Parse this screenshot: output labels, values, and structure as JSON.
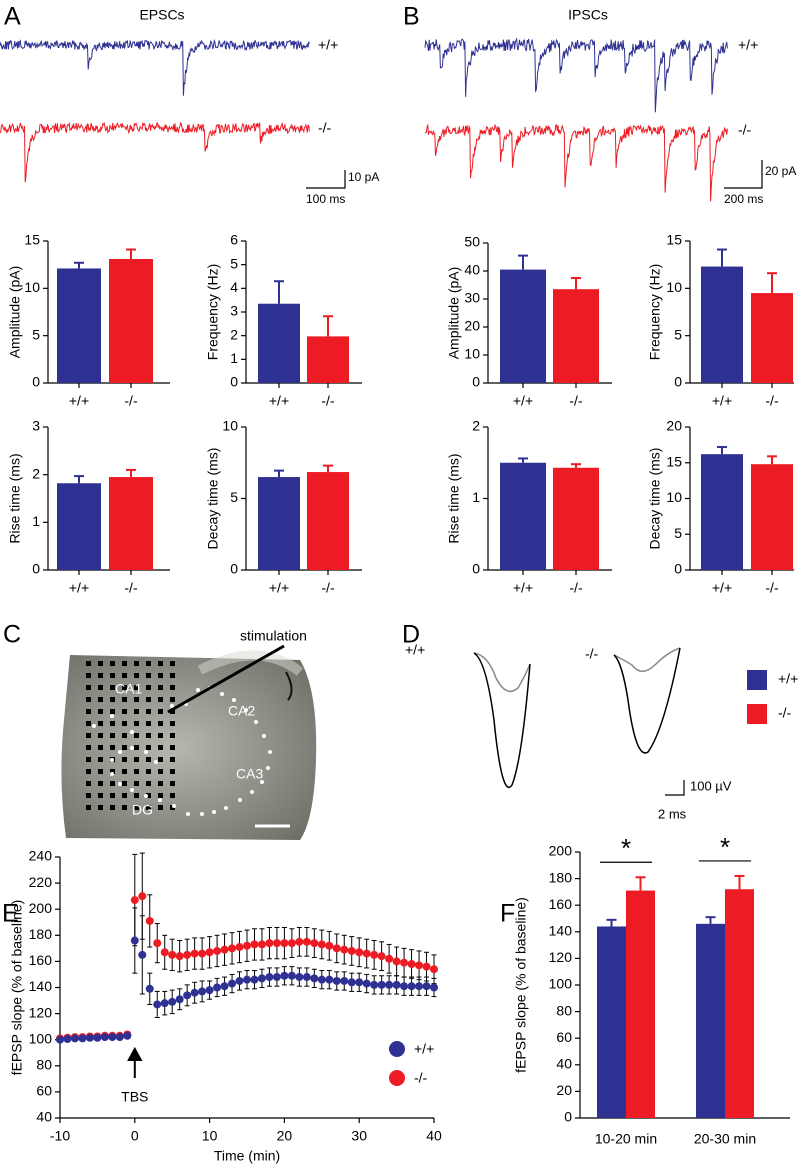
{
  "panels": [
    {
      "letter": "A",
      "title": "EPSCs",
      "traces": [
        "+/+",
        "-/-"
      ],
      "scale": [
        "10 pA",
        "100 ms"
      ]
    },
    {
      "letter": "B",
      "title": "IPSCs",
      "traces": [
        "+/+",
        "-/-"
      ],
      "scale": [
        "20 pA",
        "200 ms"
      ]
    },
    {
      "letter": "C",
      "annotation": "stimulation",
      "regions": [
        "CA1",
        "CA2",
        "CA3",
        "DG"
      ]
    },
    {
      "letter": "D",
      "traces": [
        "+/+",
        "-/-"
      ],
      "scale": [
        "100 µV",
        "2 ms"
      ]
    },
    {
      "letter": "E"
    },
    {
      "letter": "F"
    }
  ],
  "chart_data": [
    {
      "type": "bar",
      "ylabel": "Amplitude (pA)",
      "categories": [
        "+/+",
        "-/-"
      ],
      "values": [
        12.1,
        13.1
      ],
      "errors": [
        0.6,
        1.0
      ],
      "colors": [
        "#2e3192",
        "#ed1c24"
      ],
      "ylim": [
        0,
        15
      ],
      "yticks": [
        0,
        5,
        10,
        15
      ]
    },
    {
      "type": "bar",
      "ylabel": "Frequency (Hz)",
      "categories": [
        "+/+",
        "-/-"
      ],
      "values": [
        3.35,
        1.97
      ],
      "errors": [
        0.95,
        0.85
      ],
      "colors": [
        "#2e3192",
        "#ed1c24"
      ],
      "ylim": [
        0,
        6
      ],
      "yticks": [
        0,
        1,
        2,
        3,
        4,
        5,
        6
      ]
    },
    {
      "type": "bar",
      "ylabel": "Rise time (ms)",
      "categories": [
        "+/+",
        "-/-"
      ],
      "values": [
        1.82,
        1.95
      ],
      "errors": [
        0.15,
        0.15
      ],
      "colors": [
        "#2e3192",
        "#ed1c24"
      ],
      "ylim": [
        0,
        3
      ],
      "yticks": [
        0,
        1,
        2,
        3
      ]
    },
    {
      "type": "bar",
      "ylabel": "Decay time (ms)",
      "categories": [
        "+/+",
        "-/-"
      ],
      "values": [
        6.5,
        6.85
      ],
      "errors": [
        0.45,
        0.45
      ],
      "colors": [
        "#2e3192",
        "#ed1c24"
      ],
      "ylim": [
        0,
        10
      ],
      "yticks": [
        0,
        5,
        10
      ]
    },
    {
      "type": "bar",
      "ylabel": "Amplitude (pA)",
      "categories": [
        "+/+",
        "-/-"
      ],
      "values": [
        40.5,
        33.5
      ],
      "errors": [
        5,
        4
      ],
      "colors": [
        "#2e3192",
        "#ed1c24"
      ],
      "ylim": [
        0,
        50
      ],
      "yticks": [
        0,
        10,
        20,
        30,
        40,
        50
      ]
    },
    {
      "type": "bar",
      "ylabel": "Frequency (Hz)",
      "categories": [
        "+/+",
        "-/-"
      ],
      "values": [
        12.3,
        9.5
      ],
      "errors": [
        1.8,
        2.1
      ],
      "colors": [
        "#2e3192",
        "#ed1c24"
      ],
      "ylim": [
        0,
        15
      ],
      "yticks": [
        0,
        5,
        10,
        15
      ]
    },
    {
      "type": "bar",
      "ylabel": "Rise time (ms)",
      "categories": [
        "+/+",
        "-/-"
      ],
      "values": [
        1.5,
        1.43
      ],
      "errors": [
        0.06,
        0.05
      ],
      "colors": [
        "#2e3192",
        "#ed1c24"
      ],
      "ylim": [
        0,
        2
      ],
      "yticks": [
        0,
        1,
        2
      ]
    },
    {
      "type": "bar",
      "ylabel": "Decay time (ms)",
      "categories": [
        "+/+",
        "-/-"
      ],
      "values": [
        16.2,
        14.8
      ],
      "errors": [
        1.0,
        1.1
      ],
      "colors": [
        "#2e3192",
        "#ed1c24"
      ],
      "ylim": [
        0,
        20
      ],
      "yticks": [
        0,
        5,
        10,
        15,
        20
      ]
    },
    {
      "type": "scatter",
      "xlabel": "Time (min)",
      "ylabel": "fEPSP slope (% of baseline)",
      "annotation": "TBS",
      "legend": "bottom-right",
      "x": [
        -10,
        -9,
        -8,
        -7,
        -6,
        -5,
        -4,
        -3,
        -2,
        -1,
        0,
        1,
        2,
        3,
        4,
        5,
        6,
        7,
        8,
        9,
        10,
        11,
        12,
        13,
        14,
        15,
        16,
        17,
        18,
        19,
        20,
        21,
        22,
        23,
        24,
        25,
        26,
        27,
        28,
        29,
        30,
        31,
        32,
        33,
        34,
        35,
        36,
        37,
        38,
        39,
        40
      ],
      "series": [
        {
          "name": "+/+",
          "color": "#2e3192",
          "values": [
            100,
            100.5,
            101,
            101,
            101.5,
            101.5,
            102,
            102,
            102,
            103,
            176,
            165,
            139,
            127,
            128,
            129,
            131,
            134,
            136,
            137,
            138,
            140,
            141,
            143,
            145,
            146,
            146,
            147,
            148,
            148,
            149,
            149,
            148,
            148,
            147,
            146,
            146,
            145,
            145,
            144,
            144,
            143,
            142,
            142,
            142,
            142,
            141,
            141,
            141,
            141,
            140
          ],
          "errors": [
            1,
            1,
            1,
            1,
            1,
            1,
            1,
            1,
            1,
            1,
            25,
            30,
            12,
            10,
            9,
            9,
            8,
            8,
            8,
            8,
            7,
            7,
            7,
            7,
            7,
            7,
            7,
            7,
            7,
            7,
            7,
            7,
            7,
            7,
            7,
            7,
            7,
            7,
            7,
            7,
            7,
            7,
            7,
            7,
            7,
            7,
            7,
            7,
            7,
            7,
            7
          ]
        },
        {
          "name": "-/-",
          "color": "#ed1c24",
          "values": [
            101,
            101.5,
            102,
            102,
            102.5,
            102.5,
            103,
            103,
            103,
            104,
            207,
            210,
            191,
            174,
            167,
            165,
            164,
            165,
            166,
            166,
            167,
            168,
            169,
            170,
            171,
            172,
            173,
            173,
            174,
            174,
            174,
            174,
            175,
            175,
            174,
            173,
            172,
            170,
            169,
            168,
            167,
            166,
            165,
            164,
            162,
            160,
            159,
            158,
            157,
            156,
            154
          ],
          "errors": [
            1.5,
            1.5,
            1.5,
            1.5,
            1.5,
            1.5,
            1.5,
            1.5,
            1.5,
            1.5,
            35,
            33,
            20,
            15,
            13,
            12,
            12,
            12,
            12,
            12,
            12,
            12,
            12,
            12,
            12,
            12,
            12,
            12,
            12,
            12,
            12,
            11,
            11,
            11,
            11,
            11,
            11,
            11,
            11,
            11,
            11,
            11,
            11,
            11,
            11,
            11,
            11,
            11,
            11,
            11,
            11
          ]
        }
      ],
      "xlim": [
        -10,
        40
      ],
      "xticks": [
        -10,
        0,
        10,
        20,
        30,
        40
      ],
      "ylim": [
        40,
        240
      ],
      "yticks": [
        40,
        60,
        80,
        100,
        120,
        140,
        160,
        180,
        200,
        220,
        240
      ]
    },
    {
      "type": "grouped_bar",
      "ylabel": "fEPSP slope (% of baseline)",
      "categories": [
        "10-20 min",
        "20-30 min"
      ],
      "legend": "top-right",
      "series": [
        {
          "name": "+/+",
          "color": "#2e3192",
          "values": [
            144,
            146
          ],
          "errors": [
            5,
            5
          ]
        },
        {
          "name": "-/-",
          "color": "#ed1c24",
          "values": [
            171,
            172
          ],
          "errors": [
            10,
            10
          ]
        }
      ],
      "annotations": [
        "*",
        "*"
      ],
      "ylim": [
        0,
        200
      ],
      "yticks": [
        0,
        20,
        40,
        60,
        80,
        100,
        120,
        140,
        160,
        180,
        200
      ]
    }
  ]
}
